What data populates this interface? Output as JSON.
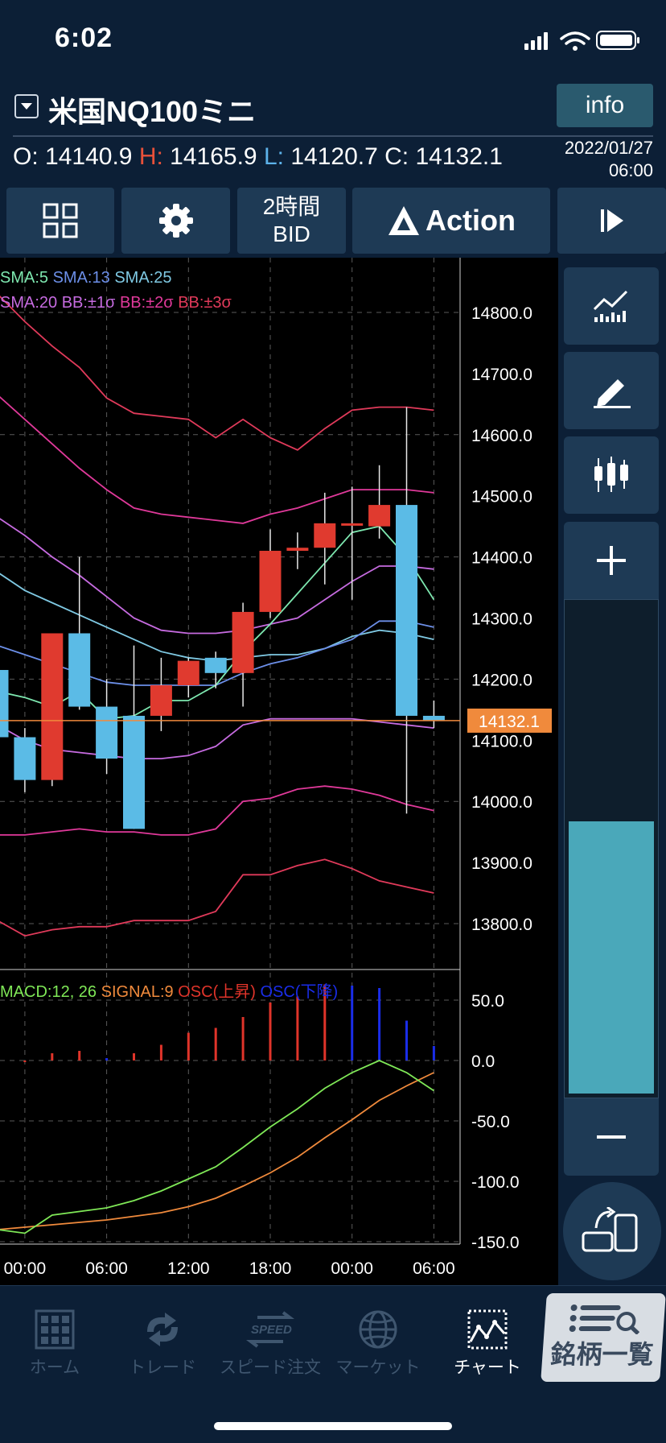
{
  "status_bar": {
    "time": "6:02"
  },
  "header": {
    "symbol": "米国NQ100ミニ",
    "info_label": "info",
    "ohlc": {
      "o_label": "O:",
      "o": "14140.9",
      "h_label": "H:",
      "h": "14165.9",
      "l_label": "L:",
      "l": "14120.7",
      "c_label": "C:",
      "c": "14132.1"
    },
    "date": "2022/01/27",
    "time": "06:00"
  },
  "toolbar": {
    "period": "2時間",
    "price_type": "BID",
    "action_label": "Action"
  },
  "colors": {
    "up": "#e03a2f",
    "down": "#5bbbe6",
    "sma5": "#7ee8b0",
    "sma13": "#6c8fe8",
    "sma25": "#7fc9e3",
    "sma20": "#c66be0",
    "bb1": "#c66be0",
    "bb2": "#e0399a",
    "bb3": "#e03a5a",
    "macd": "#7fe857",
    "signal": "#f08a3c",
    "osc_up": "#e0342a",
    "osc_down": "#1a2de8",
    "current_price": "#f08a3c"
  },
  "chart_data": [
    {
      "type": "candlestick",
      "legend": [
        "SMA:5",
        "SMA:13",
        "SMA:25",
        "SMA:20",
        "BB:±1σ",
        "BB:±2σ",
        "BB:±3σ"
      ],
      "x_ticks": [
        "00:00",
        "06:00",
        "12:00",
        "18:00",
        "00:00",
        "06:00"
      ],
      "y_ticks": [
        "14800.0",
        "14700.0",
        "14600.0",
        "14500.0",
        "14400.0",
        "14300.0",
        "14200.0",
        "14100.0",
        "14000.0",
        "13900.0",
        "13800.0"
      ],
      "ylim": [
        13735,
        14890
      ],
      "current_price": "14132.1",
      "candles": [
        {
          "o": 14215,
          "h": 14245,
          "l": 14100,
          "c": 14105
        },
        {
          "o": 14105,
          "h": 14120,
          "l": 14015,
          "c": 14035
        },
        {
          "o": 14035,
          "h": 14270,
          "l": 14025,
          "c": 14275
        },
        {
          "o": 14275,
          "h": 14400,
          "l": 14150,
          "c": 14155
        },
        {
          "o": 14155,
          "h": 14200,
          "l": 14045,
          "c": 14070
        },
        {
          "o": 14140,
          "h": 14255,
          "l": 13955,
          "c": 13955
        },
        {
          "o": 14140,
          "h": 14235,
          "l": 14115,
          "c": 14190
        },
        {
          "o": 14190,
          "h": 14235,
          "l": 14170,
          "c": 14230
        },
        {
          "o": 14235,
          "h": 14245,
          "l": 14185,
          "c": 14210
        },
        {
          "o": 14210,
          "h": 14325,
          "l": 14155,
          "c": 14310
        },
        {
          "o": 14310,
          "h": 14445,
          "l": 14300,
          "c": 14410
        },
        {
          "o": 14410,
          "h": 14440,
          "l": 14380,
          "c": 14415
        },
        {
          "o": 14415,
          "h": 14505,
          "l": 14355,
          "c": 14455
        },
        {
          "o": 14455,
          "h": 14515,
          "l": 14330,
          "c": 14455
        },
        {
          "o": 14450,
          "h": 14550,
          "l": 14430,
          "c": 14485
        },
        {
          "o": 14485,
          "h": 14645,
          "l": 13980,
          "c": 14140
        },
        {
          "o": 14140,
          "h": 14165,
          "l": 14120,
          "c": 14132
        }
      ],
      "lines": {
        "sma5": [
          14180,
          14170,
          14155,
          14180,
          14135,
          14140,
          14165,
          14165,
          14190,
          14245,
          14290,
          14340,
          14390,
          14440,
          14450,
          14400,
          14330
        ],
        "sma13": [
          14255,
          14240,
          14225,
          14210,
          14195,
          14190,
          14190,
          14190,
          14190,
          14210,
          14225,
          14235,
          14250,
          14265,
          14295,
          14295,
          14285
        ],
        "sma25": [
          14375,
          14345,
          14325,
          14305,
          14285,
          14265,
          14245,
          14235,
          14230,
          14235,
          14240,
          14240,
          14250,
          14270,
          14280,
          14275,
          14265
        ],
        "bb_p1": [
          14465,
          14435,
          14400,
          14370,
          14335,
          14300,
          14280,
          14275,
          14275,
          14280,
          14290,
          14300,
          14330,
          14360,
          14385,
          14385,
          14380
        ],
        "bb_m1": [
          14125,
          14100,
          14085,
          14080,
          14075,
          14070,
          14070,
          14075,
          14090,
          14125,
          14135,
          14135,
          14135,
          14135,
          14130,
          14125,
          14120
        ],
        "bb_p2": [
          14665,
          14625,
          14585,
          14545,
          14510,
          14480,
          14470,
          14465,
          14460,
          14455,
          14470,
          14480,
          14495,
          14510,
          14510,
          14510,
          14505
        ],
        "bb_m2": [
          13945,
          13945,
          13950,
          13955,
          13950,
          13950,
          13945,
          13945,
          13955,
          14000,
          14005,
          14020,
          14025,
          14020,
          14010,
          13995,
          13985
        ],
        "bb_p3": [
          14830,
          14785,
          14745,
          14710,
          14660,
          14635,
          14630,
          14625,
          14595,
          14625,
          14595,
          14575,
          14610,
          14640,
          14645,
          14645,
          14640
        ],
        "bb_m3": [
          13805,
          13780,
          13790,
          13795,
          13795,
          13805,
          13805,
          13805,
          13820,
          13880,
          13880,
          13895,
          13905,
          13890,
          13870,
          13860,
          13850
        ]
      }
    },
    {
      "type": "macd",
      "legend": [
        "MACD:12, 26",
        "SIGNAL:9",
        "OSC(上昇)",
        "OSC(下降)"
      ],
      "y_ticks": [
        "50.0",
        "0.0",
        "-50.0",
        "-100.0",
        "-150.0"
      ],
      "ylim": [
        -152,
        75
      ],
      "macd": [
        -140,
        -143,
        -128,
        -125,
        -122,
        -116,
        -108,
        -98,
        -88,
        -72,
        -55,
        -40,
        -23,
        -10,
        0,
        -10,
        -25
      ],
      "signal": [
        -140,
        -138,
        -136,
        -134,
        -132,
        -129,
        -126,
        -121,
        -114,
        -104,
        -93,
        -80,
        -64,
        -49,
        -33,
        -21,
        -10
      ],
      "osc": [
        -3,
        0,
        6,
        8,
        2,
        6,
        13,
        23,
        27,
        36,
        48,
        53,
        63,
        62,
        60,
        33,
        12
      ]
    }
  ],
  "tabs": [
    {
      "label": "ホーム"
    },
    {
      "label": "トレード"
    },
    {
      "label": "スピード注文",
      "icon_text": "SPEED"
    },
    {
      "label": "マーケット"
    },
    {
      "label": "チャート"
    },
    {
      "label": "銘柄一覧"
    }
  ]
}
